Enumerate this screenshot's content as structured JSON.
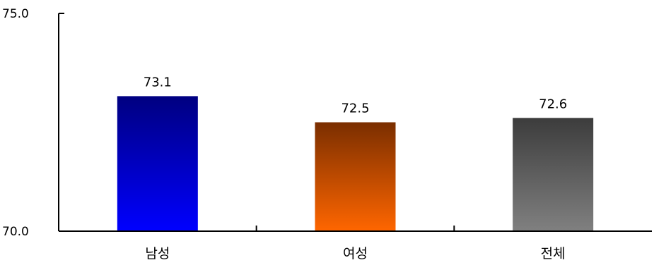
{
  "chart_data": {
    "type": "bar",
    "categories": [
      "남성",
      "여성",
      "전체"
    ],
    "values": [
      73.1,
      72.5,
      72.6
    ],
    "value_labels": [
      "73.1",
      "72.5",
      "72.6"
    ],
    "ylim": [
      70.0,
      75.0
    ],
    "ytick_labels": [
      "70.0",
      "75.0"
    ],
    "title": "",
    "xlabel": "",
    "ylabel": "",
    "grid": false,
    "bar_gradients": [
      {
        "top": "#000080",
        "bottom": "#0000ff"
      },
      {
        "top": "#7a2e00",
        "bottom": "#ff6600"
      },
      {
        "top": "#3c3c3c",
        "bottom": "#808080"
      }
    ]
  }
}
